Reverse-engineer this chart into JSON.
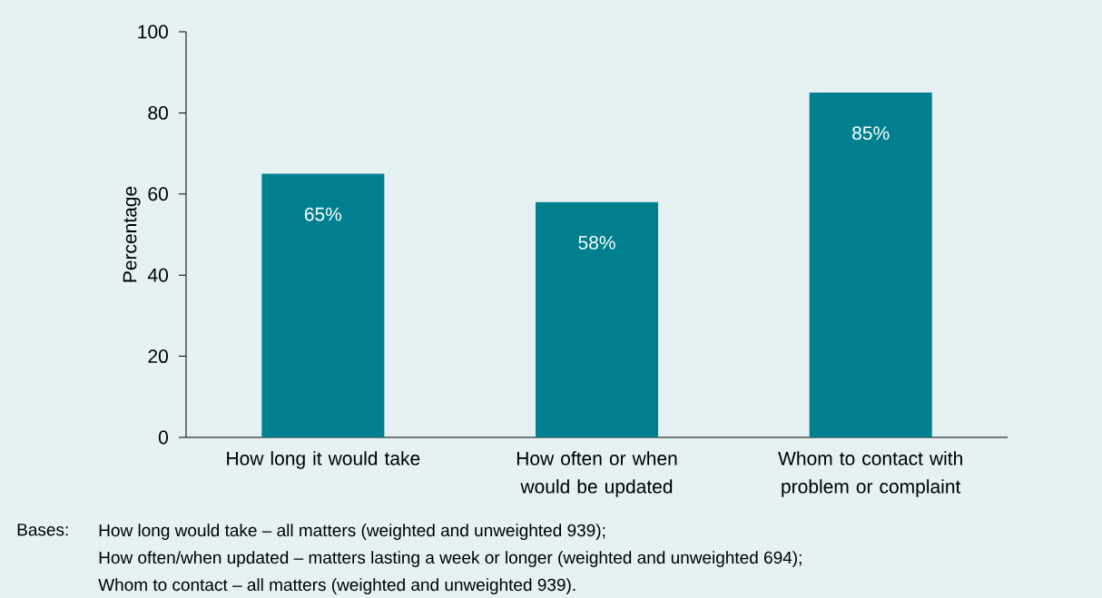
{
  "chart_data": {
    "type": "bar",
    "ylabel": "Percentage",
    "categories": [
      "How long it would take",
      "How often or when would be updated",
      "Whom to contact with problem or complaint"
    ],
    "values": [
      65,
      58,
      85
    ],
    "color": "#00808f",
    "value_labels": [
      "65%",
      "58%",
      "85%"
    ],
    "ylim": [
      0,
      100
    ],
    "yticks": [
      0,
      20,
      40,
      60,
      80,
      100
    ],
    "annotations": [
      "Bases:",
      "How long would take – all matters (weighted and unweighted 939);",
      "How often/when updated – matters lasting a week or longer (weighted and unweighted 694);",
      "Whom to contact – all matters (weighted and unweighted 939)."
    ]
  }
}
